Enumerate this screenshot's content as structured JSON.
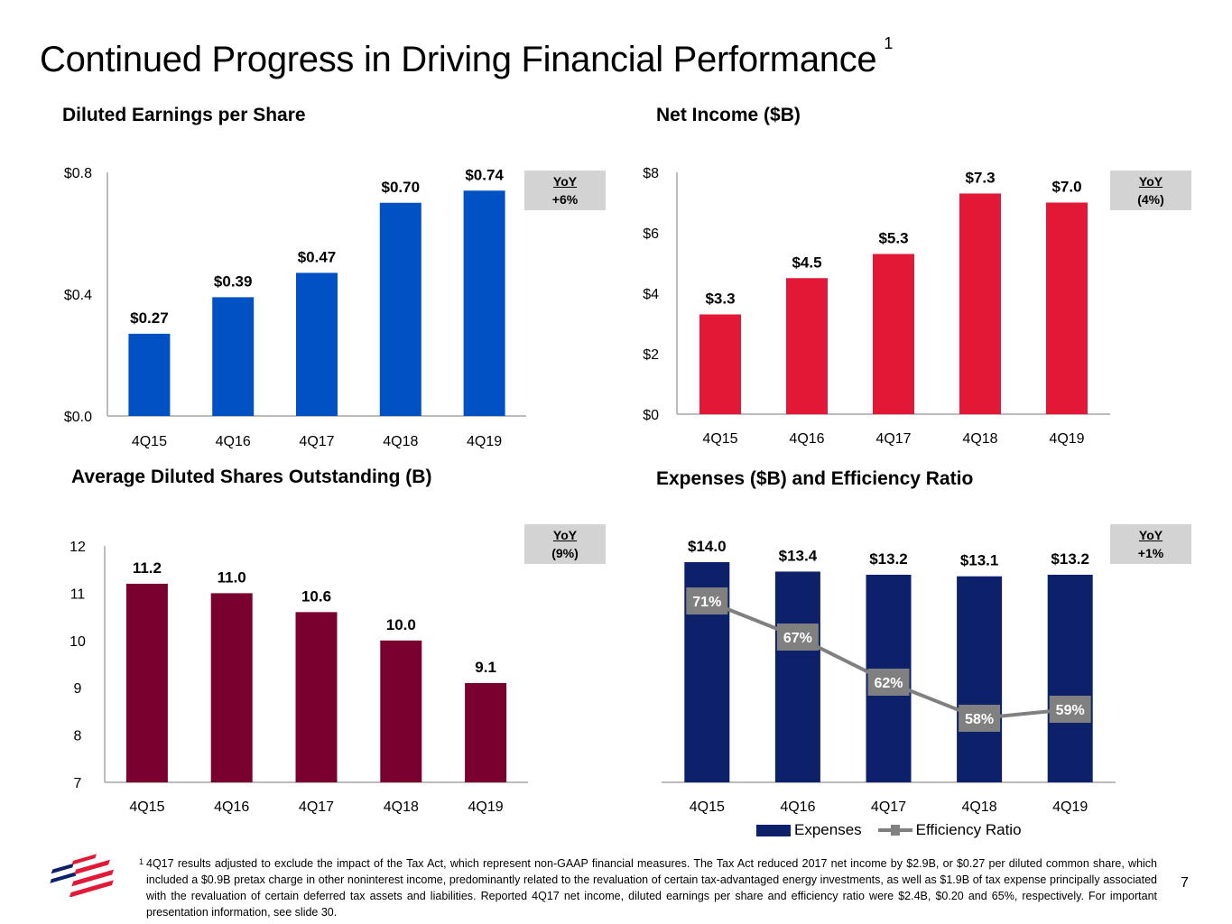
{
  "page": {
    "title": "Continued Progress in Driving Financial Performance",
    "title_footnote_ref": "1",
    "page_number": "7",
    "footnote_marker": "1",
    "footnote": "4Q17 results adjusted to exclude the impact of the Tax Act, which represent non-GAAP financial measures. The Tax Act reduced 2017 net income by $2.9B, or $0.27 per diluted common share, which included a $0.9B pretax charge in other noninterest income, predominantly related to the revaluation of certain tax-advantaged energy investments, as well as $1.9B of tax expense principally associated with the revaluation of certain deferred tax assets and liabilities. Reported 4Q17 net income, diluted earnings per share and efficiency ratio were $2.4B, $0.20 and 65%, respectively. For important presentation information, see slide 30.",
    "logo": "bank-flag-logo"
  },
  "chart_data": [
    {
      "id": "eps",
      "type": "bar",
      "title": "Diluted Earnings per Share",
      "categories": [
        "4Q15",
        "4Q16",
        "4Q17",
        "4Q18",
        "4Q19"
      ],
      "values": [
        0.27,
        0.39,
        0.47,
        0.7,
        0.74
      ],
      "value_labels": [
        "$0.27",
        "$0.39",
        "$0.47",
        "$0.70",
        "$0.74"
      ],
      "ylim": [
        0,
        0.8
      ],
      "yticks": [
        0,
        0.4,
        0.8
      ],
      "ytick_labels": [
        "$0.0",
        "$0.4",
        "$0.8"
      ],
      "color": "#0051c4",
      "yoy": {
        "label": "YoY",
        "value": "+6%"
      },
      "grid": false,
      "xlabel": "",
      "ylabel": ""
    },
    {
      "id": "net-income",
      "type": "bar",
      "title": "Net Income ($B)",
      "categories": [
        "4Q15",
        "4Q16",
        "4Q17",
        "4Q18",
        "4Q19"
      ],
      "values": [
        3.3,
        4.5,
        5.3,
        7.3,
        7.0
      ],
      "value_labels": [
        "$3.3",
        "$4.5",
        "$5.3",
        "$7.3",
        "$7.0"
      ],
      "ylim": [
        0,
        8
      ],
      "yticks": [
        0,
        2,
        4,
        6,
        8
      ],
      "ytick_labels": [
        "$0",
        "$2",
        "$4",
        "$6",
        "$8"
      ],
      "color": "#e31837",
      "yoy": {
        "label": "YoY",
        "value": "(4%)"
      },
      "grid": false,
      "xlabel": "",
      "ylabel": ""
    },
    {
      "id": "shares",
      "type": "bar",
      "title": "Average Diluted Shares Outstanding (B)",
      "categories": [
        "4Q15",
        "4Q16",
        "4Q17",
        "4Q18",
        "4Q19"
      ],
      "values": [
        11.2,
        11.0,
        10.6,
        10.0,
        9.1
      ],
      "value_labels": [
        "11.2",
        "11.0",
        "10.6",
        "10.0",
        "9.1"
      ],
      "ylim": [
        7,
        12
      ],
      "yticks": [
        7,
        8,
        9,
        10,
        11,
        12
      ],
      "ytick_labels": [
        "7",
        "8",
        "9",
        "10",
        "11",
        "12"
      ],
      "color": "#7a0030",
      "yoy": {
        "label": "YoY",
        "value": "(9%)"
      },
      "grid": false,
      "xlabel": "",
      "ylabel": ""
    },
    {
      "id": "expenses",
      "type": "bar",
      "title": "Expenses ($B) and Efficiency Ratio",
      "categories": [
        "4Q15",
        "4Q16",
        "4Q17",
        "4Q18",
        "4Q19"
      ],
      "series": [
        {
          "name": "Expenses",
          "type": "bar",
          "values": [
            14.0,
            13.4,
            13.2,
            13.1,
            13.2
          ],
          "value_labels": [
            "$14.0",
            "$13.4",
            "$13.2",
            "$13.1",
            "$13.2"
          ],
          "color": "#0c2169"
        },
        {
          "name": "Efficiency Ratio",
          "type": "line",
          "values": [
            71,
            67,
            62,
            58,
            59
          ],
          "value_labels": [
            "71%",
            "67%",
            "62%",
            "58%",
            "59%"
          ],
          "color": "#808080"
        }
      ],
      "ylim": [
        0,
        14.0
      ],
      "legend": "bottom",
      "yoy": {
        "label": "YoY",
        "value": "+1%"
      },
      "grid": false,
      "xlabel": "",
      "ylabel": ""
    }
  ]
}
